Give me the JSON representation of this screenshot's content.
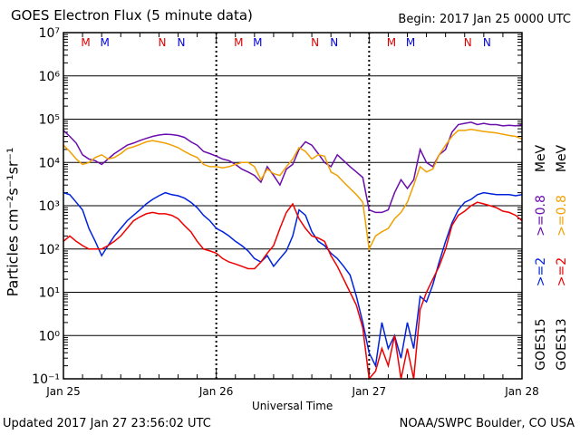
{
  "header": {
    "title": "GOES Electron Flux (5 minute data)",
    "begin": "Begin: 2017 Jan 25 0000 UTC"
  },
  "footer": {
    "updated": "Updated 2017 Jan 27 23:56:02 UTC",
    "source": "NOAA/SWPC Boulder, CO USA"
  },
  "chart_data": {
    "type": "line",
    "xlabel": "Universal Time",
    "ylabel": "Particles cm⁻²s⁻¹sr⁻¹",
    "x_ticks": [
      "Jan 25",
      "Jan 26",
      "Jan 27",
      "Jan 28"
    ],
    "xlim_hours": [
      0,
      72
    ],
    "y_scale": "log",
    "ylim": [
      0.1,
      10000000
    ],
    "y_ticks": [
      "10⁻¹",
      "10⁰",
      "10¹",
      "10²",
      "10³",
      "10⁴",
      "10⁵",
      "10⁶",
      "10⁷"
    ],
    "threshold_line": 1000,
    "grid": "horizontal decades; dotted day separators",
    "markers": {
      "labels": [
        "M",
        "M",
        "N",
        "N"
      ],
      "colors": [
        "#dd0000",
        "#0000dd",
        "#dd0000",
        "#0000dd"
      ],
      "hour_offsets": [
        3.5,
        6.5,
        15.5,
        18.5
      ]
    },
    "side_labels": {
      "goes15": "GOES15",
      "goes13": "GOES13",
      "ge2_15": ">=2",
      "ge2_13": ">=2",
      "ge08_15": ">=0.8",
      "ge08_13": ">=0.8",
      "mev": "MeV"
    },
    "series": [
      {
        "name": "GOES15 >=0.8 MeV",
        "color": "#6a0dad",
        "x": [
          0,
          1,
          2,
          3,
          4,
          5,
          6,
          7,
          8,
          9,
          10,
          11,
          12,
          13,
          14,
          15,
          16,
          17,
          18,
          19,
          20,
          21,
          22,
          23,
          24,
          25,
          26,
          27,
          28,
          29,
          30,
          31,
          32,
          33,
          34,
          35,
          36,
          37,
          38,
          39,
          40,
          41,
          42,
          43,
          44,
          45,
          46,
          47,
          48,
          49,
          50,
          51,
          52,
          53,
          54,
          55,
          56,
          57,
          58,
          59,
          60,
          61,
          62,
          63,
          64,
          65,
          66,
          67,
          68,
          69,
          70,
          71,
          72
        ],
        "values": [
          55000,
          40000,
          28000,
          15000,
          12000,
          11000,
          9000,
          12000,
          16000,
          20000,
          25000,
          28000,
          32000,
          36000,
          40000,
          43000,
          45000,
          44000,
          42000,
          38000,
          30000,
          25000,
          18000,
          16000,
          14000,
          12000,
          11000,
          9000,
          7000,
          6000,
          5000,
          3500,
          8000,
          5000,
          3000,
          7000,
          9000,
          20000,
          30000,
          25000,
          16000,
          10000,
          8000,
          15000,
          11000,
          8000,
          6000,
          4500,
          800,
          700,
          700,
          800,
          2000,
          4000,
          2500,
          4000,
          20000,
          10000,
          8000,
          15000,
          20000,
          50000,
          75000,
          80000,
          85000,
          75000,
          80000,
          75000,
          75000,
          70000,
          72000,
          70000,
          75000
        ]
      },
      {
        "name": "GOES13 >=0.8 MeV",
        "color": "#f0a000",
        "x": [
          0,
          1,
          2,
          3,
          4,
          5,
          6,
          7,
          8,
          9,
          10,
          11,
          12,
          13,
          14,
          15,
          16,
          17,
          18,
          19,
          20,
          21,
          22,
          23,
          24,
          25,
          26,
          27,
          28,
          29,
          30,
          31,
          32,
          33,
          34,
          35,
          36,
          37,
          38,
          39,
          40,
          41,
          42,
          43,
          44,
          45,
          46,
          47,
          48,
          49,
          50,
          51,
          52,
          53,
          54,
          55,
          56,
          57,
          58,
          59,
          60,
          61,
          62,
          63,
          64,
          65,
          66,
          67,
          68,
          69,
          70,
          71,
          72
        ],
        "values": [
          25000,
          18000,
          12000,
          9000,
          10000,
          13000,
          15000,
          12000,
          13000,
          16000,
          21000,
          23000,
          26000,
          30000,
          32000,
          30000,
          28000,
          25000,
          22000,
          18000,
          15000,
          13000,
          9000,
          8000,
          8000,
          7500,
          8000,
          9000,
          10000,
          10000,
          8000,
          4000,
          7000,
          5500,
          5000,
          8000,
          12000,
          22000,
          18000,
          12000,
          15000,
          14000,
          6000,
          5000,
          3500,
          2500,
          1800,
          1200,
          100,
          200,
          250,
          300,
          500,
          700,
          1200,
          3000,
          8000,
          6000,
          7000,
          15000,
          25000,
          40000,
          55000,
          55000,
          58000,
          55000,
          52000,
          50000,
          48000,
          45000,
          42000,
          40000,
          35000
        ]
      },
      {
        "name": "GOES15 >=2 MeV",
        "color": "#0022dd",
        "x": [
          0,
          1,
          2,
          3,
          4,
          5,
          6,
          7,
          8,
          9,
          10,
          11,
          12,
          13,
          14,
          15,
          16,
          17,
          18,
          19,
          20,
          21,
          22,
          23,
          24,
          25,
          26,
          27,
          28,
          29,
          30,
          31,
          32,
          33,
          34,
          35,
          36,
          37,
          38,
          39,
          40,
          41,
          42,
          43,
          44,
          45,
          46,
          47,
          48,
          49,
          50,
          51,
          52,
          53,
          54,
          55,
          56,
          57,
          58,
          59,
          60,
          61,
          62,
          63,
          64,
          65,
          66,
          67,
          68,
          69,
          70,
          71,
          72
        ],
        "values": [
          2000,
          1800,
          1200,
          800,
          300,
          150,
          70,
          120,
          200,
          300,
          450,
          600,
          800,
          1100,
          1400,
          1700,
          2000,
          1800,
          1700,
          1500,
          1200,
          900,
          600,
          450,
          300,
          250,
          200,
          150,
          120,
          90,
          60,
          50,
          70,
          40,
          60,
          90,
          200,
          800,
          600,
          250,
          150,
          120,
          80,
          60,
          40,
          25,
          8,
          2,
          0.4,
          0.2,
          2,
          0.5,
          1,
          0.3,
          2,
          0.5,
          8,
          6,
          15,
          50,
          150,
          400,
          800,
          1200,
          1400,
          1800,
          2000,
          1900,
          1800,
          1800,
          1800,
          1700,
          1800
        ]
      },
      {
        "name": "GOES13 >=2 MeV",
        "color": "#ee0000",
        "x": [
          0,
          1,
          2,
          3,
          4,
          5,
          6,
          7,
          8,
          9,
          10,
          11,
          12,
          13,
          14,
          15,
          16,
          17,
          18,
          19,
          20,
          21,
          22,
          23,
          24,
          25,
          26,
          27,
          28,
          29,
          30,
          31,
          32,
          33,
          34,
          35,
          36,
          37,
          38,
          39,
          40,
          41,
          42,
          43,
          44,
          45,
          46,
          47,
          48,
          49,
          50,
          51,
          52,
          53,
          54,
          55,
          56,
          57,
          58,
          59,
          60,
          61,
          62,
          63,
          64,
          65,
          66,
          67,
          68,
          69,
          70,
          71,
          72
        ],
        "values": [
          150,
          200,
          150,
          120,
          100,
          100,
          100,
          120,
          150,
          200,
          300,
          450,
          550,
          650,
          700,
          650,
          650,
          600,
          500,
          350,
          250,
          150,
          100,
          90,
          80,
          60,
          50,
          45,
          40,
          35,
          35,
          50,
          80,
          120,
          300,
          700,
          1100,
          500,
          300,
          200,
          180,
          150,
          70,
          40,
          20,
          10,
          5,
          1.5,
          0.1,
          0.15,
          0.5,
          0.2,
          1,
          0.1,
          0.5,
          0.1,
          4,
          10,
          20,
          40,
          100,
          350,
          600,
          750,
          1000,
          1200,
          1100,
          1000,
          900,
          750,
          700,
          600,
          450
        ]
      }
    ]
  }
}
